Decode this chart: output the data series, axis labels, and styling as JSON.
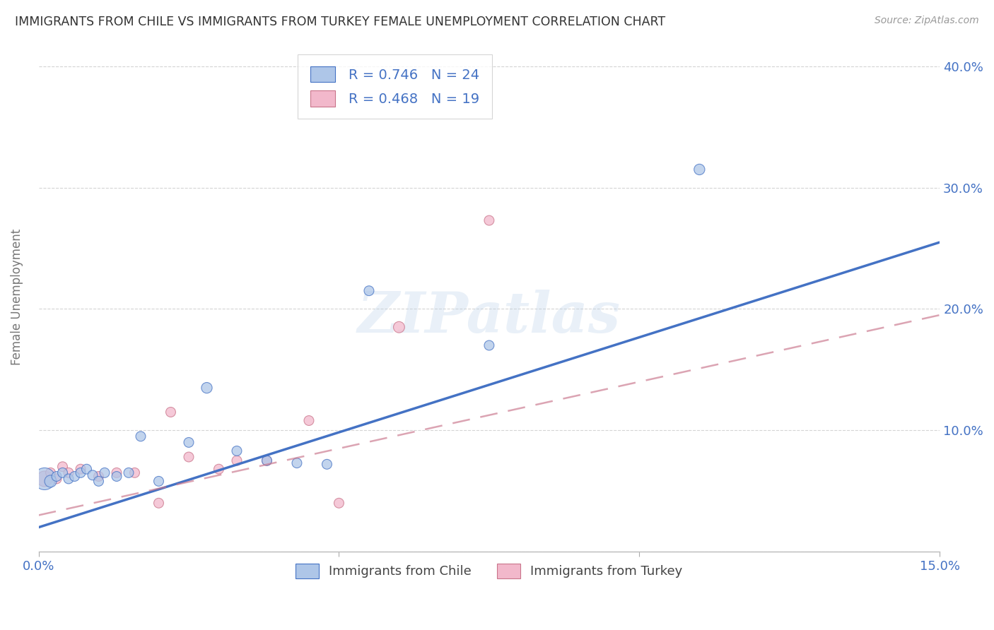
{
  "title": "IMMIGRANTS FROM CHILE VS IMMIGRANTS FROM TURKEY FEMALE UNEMPLOYMENT CORRELATION CHART",
  "source": "Source: ZipAtlas.com",
  "ylabel": "Female Unemployment",
  "xlim": [
    0.0,
    0.15
  ],
  "ylim": [
    0.0,
    0.42
  ],
  "chile_R": 0.746,
  "chile_N": 24,
  "turkey_R": 0.468,
  "turkey_N": 19,
  "chile_color": "#aec6e8",
  "turkey_color": "#f2b8cb",
  "chile_line_color": "#4472c4",
  "turkey_line_color": "#c9748a",
  "chile_scatter_x": [
    0.001,
    0.002,
    0.003,
    0.004,
    0.005,
    0.006,
    0.007,
    0.008,
    0.009,
    0.01,
    0.011,
    0.013,
    0.015,
    0.017,
    0.02,
    0.025,
    0.028,
    0.033,
    0.038,
    0.043,
    0.048,
    0.055,
    0.075,
    0.11
  ],
  "chile_scatter_y": [
    0.06,
    0.058,
    0.062,
    0.065,
    0.06,
    0.062,
    0.065,
    0.068,
    0.063,
    0.058,
    0.065,
    0.062,
    0.065,
    0.095,
    0.058,
    0.09,
    0.135,
    0.083,
    0.075,
    0.073,
    0.072,
    0.215,
    0.17,
    0.315
  ],
  "chile_sizes": [
    500,
    150,
    100,
    100,
    100,
    100,
    100,
    100,
    100,
    100,
    100,
    100,
    100,
    100,
    100,
    100,
    120,
    100,
    100,
    100,
    100,
    100,
    100,
    120
  ],
  "turkey_scatter_x": [
    0.001,
    0.002,
    0.003,
    0.004,
    0.005,
    0.007,
    0.01,
    0.013,
    0.016,
    0.02,
    0.022,
    0.025,
    0.03,
    0.033,
    0.038,
    0.045,
    0.05,
    0.06,
    0.075
  ],
  "turkey_scatter_y": [
    0.06,
    0.065,
    0.06,
    0.07,
    0.065,
    0.068,
    0.062,
    0.065,
    0.065,
    0.04,
    0.115,
    0.078,
    0.068,
    0.075,
    0.075,
    0.108,
    0.04,
    0.185,
    0.273
  ],
  "turkey_sizes": [
    250,
    100,
    100,
    100,
    100,
    100,
    100,
    100,
    100,
    100,
    100,
    100,
    100,
    100,
    100,
    100,
    100,
    130,
    100
  ],
  "chile_line_x0": 0.0,
  "chile_line_y0": 0.02,
  "chile_line_x1": 0.15,
  "chile_line_y1": 0.255,
  "turkey_line_x0": 0.0,
  "turkey_line_y0": 0.03,
  "turkey_line_x1": 0.15,
  "turkey_line_y1": 0.195,
  "watermark_text": "ZIPatlas",
  "grid_color": "#d0d0d0",
  "bg_color": "#ffffff",
  "title_color": "#333333",
  "axis_color": "#4472c4",
  "right_yticks": [
    0.1,
    0.2,
    0.3,
    0.4
  ],
  "right_yticklabels": [
    "10.0%",
    "20.0%",
    "30.0%",
    "40.0%"
  ]
}
